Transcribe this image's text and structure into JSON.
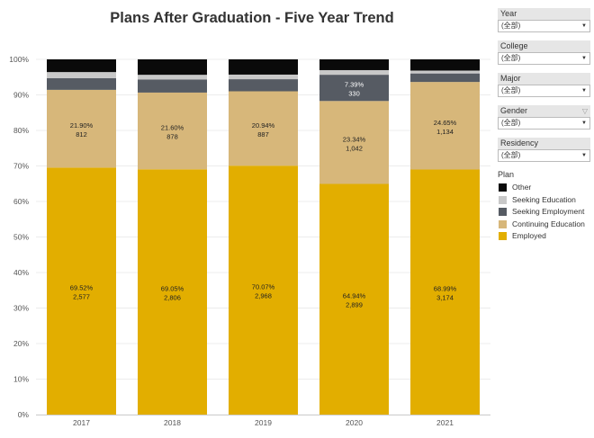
{
  "filters": [
    {
      "label": "Year",
      "value": "(全部)"
    },
    {
      "label": "College",
      "value": "(全部)"
    },
    {
      "label": "Major",
      "value": "(全部)"
    },
    {
      "label": "Gender",
      "value": "(全部)"
    },
    {
      "label": "Residency",
      "value": "(全部)"
    }
  ],
  "chart_data": {
    "type": "bar",
    "stacked": true,
    "title": "Plans After Graduation - Five Year Trend",
    "categories": [
      "2017",
      "2018",
      "2019",
      "2020",
      "2021"
    ],
    "ylim": [
      0,
      100
    ],
    "yticks": [
      "0%",
      "10%",
      "20%",
      "30%",
      "40%",
      "50%",
      "60%",
      "70%",
      "80%",
      "90%",
      "100%"
    ],
    "legend_title": "Plan",
    "legend": [
      "Other",
      "Seeking Education",
      "Seeking Employment",
      "Continuing Education",
      "Employed"
    ],
    "colors": {
      "Employed": "#e2ae00",
      "Continuing Education": "#d7b77a",
      "Seeking Employment": "#565b63",
      "Seeking Education": "#c8c8c8",
      "Other": "#0a0a0a"
    },
    "series": [
      {
        "name": "Employed",
        "values": [
          69.52,
          69.05,
          70.07,
          64.94,
          68.99
        ],
        "labels": [
          "69.52%",
          "69.05%",
          "70.07%",
          "64.94%",
          "68.99%"
        ],
        "counts": [
          "2,577",
          "2,806",
          "2,968",
          "2,899",
          "3,174"
        ]
      },
      {
        "name": "Continuing Education",
        "values": [
          21.9,
          21.6,
          20.94,
          23.34,
          24.65
        ],
        "labels": [
          "21.90%",
          "21.60%",
          "20.94%",
          "23.34%",
          "24.65%"
        ],
        "counts": [
          "812",
          "878",
          "887",
          "1,042",
          "1,134"
        ]
      },
      {
        "name": "Seeking Employment",
        "values": [
          3.3,
          3.7,
          3.4,
          7.39,
          2.4
        ],
        "labels": [
          "",
          "",
          "",
          "7.39%",
          ""
        ],
        "counts": [
          "",
          "",
          "",
          "330",
          ""
        ]
      },
      {
        "name": "Seeking Education",
        "values": [
          1.7,
          1.3,
          1.3,
          1.3,
          0.8
        ],
        "labels": [
          "",
          "",
          "",
          "",
          ""
        ],
        "counts": [
          "",
          "",
          "",
          "",
          ""
        ]
      },
      {
        "name": "Other",
        "values": [
          3.58,
          4.35,
          4.29,
          3.03,
          3.16
        ],
        "labels": [
          "",
          "",
          "",
          "",
          ""
        ],
        "counts": [
          "",
          "",
          "",
          "",
          ""
        ]
      }
    ]
  }
}
